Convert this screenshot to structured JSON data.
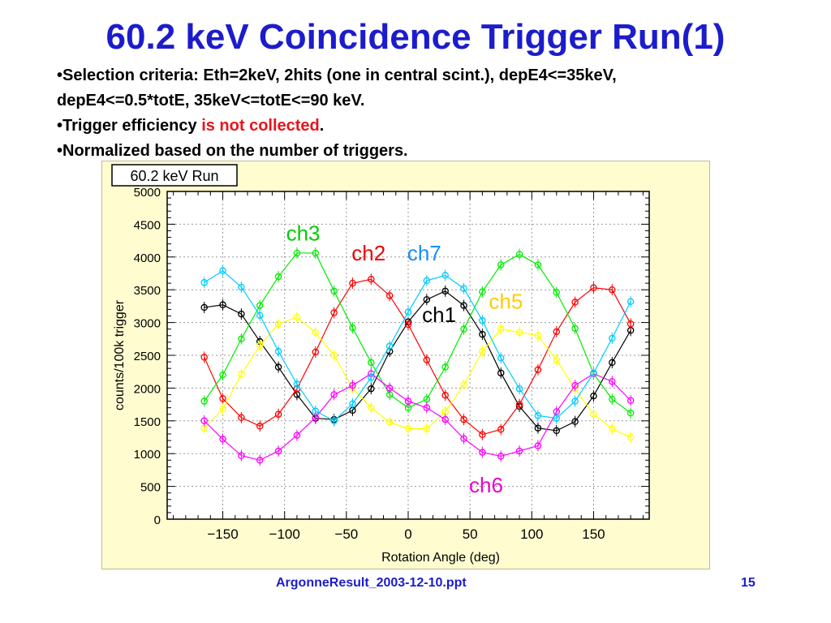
{
  "slide": {
    "title": "60.2 keV Coincidence Trigger Run(1)",
    "bullets": [
      {
        "segments": [
          {
            "text": "•Selection criteria: Eth=2keV, 2hits (one in central scint.), depE4<=35keV,",
            "color": "black"
          }
        ]
      },
      {
        "segments": [
          {
            "text": "depE4<=0.5*totE, 35keV<=totE<=90 keV.",
            "color": "black"
          }
        ]
      },
      {
        "segments": [
          {
            "text": "•Trigger efficiency ",
            "color": "black"
          },
          {
            "text": "is not collected",
            "color": "red"
          },
          {
            "text": ".",
            "color": "black"
          }
        ]
      },
      {
        "segments": [
          {
            "text": "•Normalized based on the number of triggers.",
            "color": "black"
          }
        ]
      }
    ],
    "footer_file": "ArgonneResult_2003-12-10.ppt",
    "page_number": "15"
  },
  "chart_data": {
    "type": "scatter",
    "title": "60.2 keV Run",
    "xlabel": "Rotation Angle (deg)",
    "ylabel": "counts/100k trigger",
    "xlim": [
      -195,
      195
    ],
    "ylim": [
      0,
      5000
    ],
    "xticks": [
      -150,
      -100,
      -50,
      0,
      50,
      100,
      150
    ],
    "yticks": [
      0,
      500,
      1000,
      1500,
      2000,
      2500,
      3000,
      3500,
      4000,
      4500,
      5000
    ],
    "grid": true,
    "x": [
      -165,
      -150,
      -135,
      -120,
      -105,
      -90,
      -75,
      -60,
      -45,
      -30,
      -15,
      0,
      15,
      30,
      45,
      60,
      75,
      90,
      105,
      120,
      135,
      150,
      165,
      180
    ],
    "series": [
      {
        "name": "ch1",
        "color": "#000000",
        "values": [
          3230,
          3270,
          3130,
          2710,
          2320,
          1900,
          1540,
          1520,
          1660,
          1990,
          2560,
          3010,
          3350,
          3480,
          3260,
          2820,
          2230,
          1720,
          1390,
          1350,
          1490,
          1880,
          2390,
          2880
        ]
      },
      {
        "name": "ch2",
        "color": "#ff0000",
        "values": [
          2470,
          1840,
          1550,
          1420,
          1600,
          1990,
          2550,
          3150,
          3600,
          3660,
          3410,
          2970,
          2430,
          1890,
          1520,
          1290,
          1370,
          1750,
          2280,
          2860,
          3310,
          3530,
          3500,
          2980
        ]
      },
      {
        "name": "ch3",
        "color": "#00ee00",
        "values": [
          1800,
          2200,
          2750,
          3260,
          3700,
          4060,
          4060,
          3480,
          2920,
          2390,
          1900,
          1700,
          1830,
          2320,
          2900,
          3470,
          3880,
          4040,
          3880,
          3460,
          2910,
          2220,
          1830,
          1620
        ]
      },
      {
        "name": "ch5",
        "color": "#ffff00",
        "values": [
          1390,
          1680,
          2210,
          2650,
          2980,
          3080,
          2850,
          2500,
          2000,
          1700,
          1480,
          1380,
          1380,
          1640,
          2050,
          2560,
          2900,
          2850,
          2800,
          2430,
          1990,
          1600,
          1380,
          1250
        ]
      },
      {
        "name": "ch6",
        "color": "#ff00ff",
        "values": [
          1500,
          1220,
          970,
          900,
          1040,
          1280,
          1550,
          1900,
          2040,
          2220,
          2000,
          1800,
          1700,
          1520,
          1230,
          1020,
          960,
          1040,
          1120,
          1640,
          2040,
          2220,
          2100,
          1810
        ]
      },
      {
        "name": "ch7",
        "color": "#00ccff",
        "values": [
          3610,
          3790,
          3540,
          3110,
          2560,
          2060,
          1650,
          1500,
          1760,
          2160,
          2640,
          3160,
          3640,
          3720,
          3520,
          3030,
          2460,
          1990,
          1580,
          1540,
          1800,
          2230,
          2760,
          3320
        ]
      }
    ],
    "annotations": [
      {
        "text": "ch3",
        "x": -85,
        "y": 4250,
        "color": "#00cc00"
      },
      {
        "text": "ch2",
        "x": -32,
        "y": 3950,
        "color": "#ee0000"
      },
      {
        "text": "ch7",
        "x": 13,
        "y": 3950,
        "color": "#1a8cff"
      },
      {
        "text": "ch5",
        "x": 79,
        "y": 3210,
        "color": "#ffcc00"
      },
      {
        "text": "ch1",
        "x": 25,
        "y": 3010,
        "color": "#000000"
      },
      {
        "text": "ch6",
        "x": 63,
        "y": 410,
        "color": "#ee00cc"
      }
    ]
  }
}
